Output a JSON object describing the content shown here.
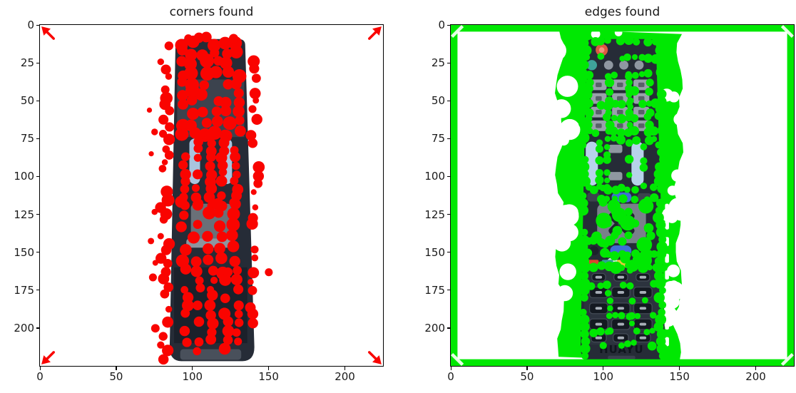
{
  "figure": {
    "background": "#ffffff",
    "kind": "matplotlib image-pair figure",
    "subject": "corner detection vs edge detection overlaid on a photo of a handheld TV remote control"
  },
  "chart_data": [
    {
      "type": "heatmap",
      "render_as": "image",
      "title": "corners found",
      "x_ticks": [
        0,
        50,
        100,
        150,
        200
      ],
      "y_ticks": [
        0,
        25,
        50,
        75,
        100,
        125,
        150,
        175,
        200
      ],
      "x_range": [
        0,
        225
      ],
      "y_range": [
        0,
        225
      ],
      "origin": "upper",
      "grid": false,
      "legend": "none",
      "image_content": "dark TV remote control standing vertically on white background, spanning roughly x=85-141, y=9-222",
      "overlay": "corners",
      "overlay_color": "#f90400",
      "overlay_features": [
        "dense red corner markers covering the remote's button area",
        "red marker blobs tracing the remote silhouette on both sides",
        "small red arrow marks at all four image corners"
      ]
    },
    {
      "type": "heatmap",
      "render_as": "image",
      "title": "edges found",
      "x_ticks": [
        0,
        50,
        100,
        150,
        200
      ],
      "y_ticks": [
        0,
        25,
        50,
        75,
        100,
        125,
        150,
        175,
        200
      ],
      "x_range": [
        0,
        225
      ],
      "y_range": [
        0,
        225
      ],
      "origin": "upper",
      "grid": false,
      "legend": "none",
      "image_content": "same TV remote photo; buttons visible: red power key, teal key, grey number pad, light-blue volume/channel rockers, blue keys, d-pad, red/teal/yellow/blue colour row, dark lower key grid, brand text",
      "overlay": "edges",
      "overlay_color": "#00e802",
      "overlay_features": [
        "thick bright-green frame around the full image border",
        "solid green region filling the background band around the remote (x≈70-149) with white notches",
        "green edge fragments criss-crossing between the remote's buttons"
      ]
    }
  ],
  "remote": {
    "brand": "HUAYU",
    "body_color": "#262c37",
    "lower_panel_color": "#2c333e",
    "buttons": {
      "power": "#dd5a41",
      "power_highlight": "#f0937e",
      "teal_key": "#3fa39a",
      "grey_key": "#8f97a1",
      "number_key": "#99a0aa",
      "rocker_blue": "#b7d2ea",
      "accent_blue": "#3f6ed6",
      "dpad": "#79808a",
      "dark_key": "#141921",
      "color_row": [
        "#d8442e",
        "#2fa193",
        "#e3cc37",
        "#3b63d0"
      ]
    }
  },
  "axis_style": {
    "spine_color": "#000000",
    "tick_color": "#000000",
    "label_color": "#1a1a1a"
  }
}
